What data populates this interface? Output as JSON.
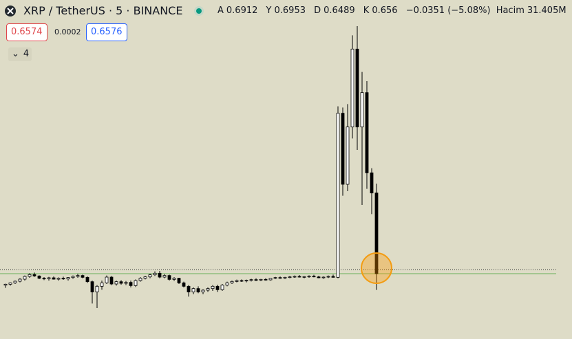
{
  "header": {
    "symbol": "XRP / TetherUS · 5 · BINANCE",
    "ohlc": [
      {
        "label": "A",
        "value": 0.6912
      },
      {
        "label": "Y",
        "value": 0.6953
      },
      {
        "label": "D",
        "value": 0.6489
      },
      {
        "label": "K",
        "value": 0.656
      }
    ],
    "change": "−0.0351 (−5.08%)",
    "volume_label": "Hacim",
    "volume": "31.405M"
  },
  "trade": {
    "sell": 0.6574,
    "spread": 0.0002,
    "buy": 0.6576
  },
  "indicators": {
    "count": 4
  },
  "price_line": 0.656,
  "candles": [
    [
      0.651,
      0.6516,
      0.6498,
      0.6514
    ],
    [
      0.6514,
      0.6522,
      0.6508,
      0.652
    ],
    [
      0.652,
      0.653,
      0.6515,
      0.6527
    ],
    [
      0.6527,
      0.654,
      0.6522,
      0.6536
    ],
    [
      0.6536,
      0.6552,
      0.653,
      0.6548
    ],
    [
      0.6548,
      0.6562,
      0.6542,
      0.6556
    ],
    [
      0.6556,
      0.6565,
      0.6546,
      0.655
    ],
    [
      0.655,
      0.6553,
      0.6536,
      0.654
    ],
    [
      0.654,
      0.6545,
      0.6532,
      0.6538
    ],
    [
      0.6538,
      0.6546,
      0.653,
      0.6542
    ],
    [
      0.6542,
      0.6548,
      0.6534,
      0.6536
    ],
    [
      0.6536,
      0.6544,
      0.653,
      0.654
    ],
    [
      0.654,
      0.6547,
      0.6533,
      0.6537
    ],
    [
      0.6537,
      0.6545,
      0.653,
      0.6543
    ],
    [
      0.6543,
      0.6552,
      0.6538,
      0.6548
    ],
    [
      0.6548,
      0.656,
      0.6542,
      0.6552
    ],
    [
      0.6552,
      0.6556,
      0.654,
      0.6544
    ],
    [
      0.6544,
      0.6548,
      0.652,
      0.6525
    ],
    [
      0.6525,
      0.653,
      0.643,
      0.648
    ],
    [
      0.648,
      0.651,
      0.641,
      0.6505
    ],
    [
      0.6505,
      0.653,
      0.649,
      0.652
    ],
    [
      0.652,
      0.6552,
      0.6515,
      0.6545
    ],
    [
      0.6545,
      0.655,
      0.651,
      0.6515
    ],
    [
      0.6515,
      0.653,
      0.6508,
      0.6525
    ],
    [
      0.6525,
      0.6532,
      0.6512,
      0.6518
    ],
    [
      0.6518,
      0.6528,
      0.651,
      0.6522
    ],
    [
      0.6522,
      0.653,
      0.65,
      0.6508
    ],
    [
      0.6508,
      0.6535,
      0.6502,
      0.653
    ],
    [
      0.653,
      0.6545,
      0.6525,
      0.654
    ],
    [
      0.654,
      0.655,
      0.6535,
      0.6546
    ],
    [
      0.6546,
      0.656,
      0.654,
      0.6555
    ],
    [
      0.6555,
      0.657,
      0.655,
      0.6562
    ],
    [
      0.6562,
      0.6572,
      0.654,
      0.6545
    ],
    [
      0.6545,
      0.6558,
      0.654,
      0.6552
    ],
    [
      0.6552,
      0.6556,
      0.653,
      0.6535
    ],
    [
      0.6535,
      0.6545,
      0.6528,
      0.654
    ],
    [
      0.654,
      0.6542,
      0.6515,
      0.652
    ],
    [
      0.652,
      0.6525,
      0.65,
      0.6505
    ],
    [
      0.6505,
      0.651,
      0.646,
      0.648
    ],
    [
      0.648,
      0.65,
      0.647,
      0.6495
    ],
    [
      0.6495,
      0.6505,
      0.6475,
      0.648
    ],
    [
      0.648,
      0.6492,
      0.647,
      0.6488
    ],
    [
      0.6488,
      0.65,
      0.648,
      0.6495
    ],
    [
      0.6495,
      0.651,
      0.6485,
      0.6505
    ],
    [
      0.6505,
      0.6512,
      0.648,
      0.649
    ],
    [
      0.649,
      0.6515,
      0.6485,
      0.651
    ],
    [
      0.651,
      0.6525,
      0.6505,
      0.652
    ],
    [
      0.652,
      0.653,
      0.6515,
      0.6526
    ],
    [
      0.6526,
      0.6534,
      0.6522,
      0.653
    ],
    [
      0.653,
      0.6535,
      0.6524,
      0.6528
    ],
    [
      0.6528,
      0.6534,
      0.6522,
      0.6531
    ],
    [
      0.6531,
      0.6538,
      0.6526,
      0.6534
    ],
    [
      0.6534,
      0.654,
      0.6528,
      0.6532
    ],
    [
      0.6532,
      0.6537,
      0.6528,
      0.6535
    ],
    [
      0.6535,
      0.654,
      0.653,
      0.6533
    ],
    [
      0.6533,
      0.6542,
      0.653,
      0.654
    ],
    [
      0.654,
      0.6546,
      0.6536,
      0.6543
    ],
    [
      0.6543,
      0.6548,
      0.6538,
      0.6541
    ],
    [
      0.6541,
      0.6546,
      0.6537,
      0.6544
    ],
    [
      0.6544,
      0.655,
      0.654,
      0.6546
    ],
    [
      0.6546,
      0.6552,
      0.6542,
      0.6548
    ],
    [
      0.6548,
      0.6554,
      0.6543,
      0.6545
    ],
    [
      0.6545,
      0.655,
      0.654,
      0.6547
    ],
    [
      0.6547,
      0.6553,
      0.6542,
      0.6549
    ],
    [
      0.6549,
      0.6555,
      0.6544,
      0.6546
    ],
    [
      0.6546,
      0.6551,
      0.654,
      0.6542
    ],
    [
      0.6542,
      0.6548,
      0.6538,
      0.6545
    ],
    [
      0.6545,
      0.6552,
      0.6541,
      0.6548
    ],
    [
      0.6548,
      0.6556,
      0.6543,
      0.6544
    ],
    [
      0.6544,
      0.729,
      0.654,
      0.726
    ],
    [
      0.726,
      0.7285,
      0.69,
      0.695
    ],
    [
      0.695,
      0.73,
      0.692,
      0.72
    ],
    [
      0.72,
      0.76,
      0.715,
      0.754
    ],
    [
      0.754,
      0.764,
      0.71,
      0.72
    ],
    [
      0.72,
      0.744,
      0.686,
      0.735
    ],
    [
      0.735,
      0.74,
      0.693,
      0.7
    ],
    [
      0.7,
      0.702,
      0.682,
      0.6912
    ],
    [
      0.6912,
      0.6953,
      0.6489,
      0.656
    ]
  ]
}
